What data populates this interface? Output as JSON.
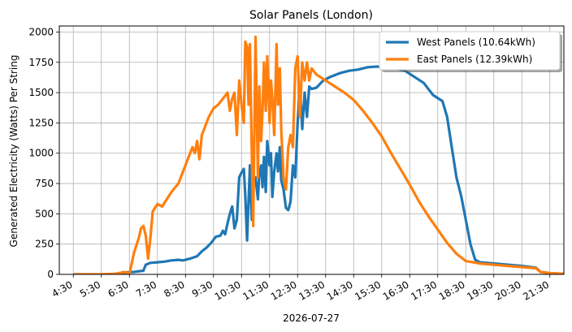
{
  "chart_data": {
    "type": "line",
    "title": "Solar Panels (London)",
    "xlabel": "2026-07-27",
    "ylabel": "Generated Electricity (Watts) Per String",
    "ylim": [
      0,
      2050
    ],
    "yticks": [
      0,
      250,
      500,
      750,
      1000,
      1250,
      1500,
      1750,
      2000
    ],
    "xlim": [
      "4:00",
      "22:00"
    ],
    "xticks": [
      "4:30",
      "5:30",
      "6:30",
      "7:30",
      "8:30",
      "9:30",
      "10:30",
      "11:30",
      "12:30",
      "13:30",
      "14:30",
      "15:30",
      "16:30",
      "17:30",
      "18:30",
      "19:30",
      "20:30",
      "21:30"
    ],
    "grid": true,
    "legend_position": "top-right",
    "series": [
      {
        "name": "West Panels (10.64kWh)",
        "color": "#1f77b4",
        "points": [
          [
            "4:30",
            0
          ],
          [
            "5:30",
            0
          ],
          [
            "6:00",
            5
          ],
          [
            "6:20",
            15
          ],
          [
            "6:40",
            20
          ],
          [
            "7:00",
            30
          ],
          [
            "7:05",
            80
          ],
          [
            "7:15",
            95
          ],
          [
            "7:30",
            100
          ],
          [
            "7:45",
            105
          ],
          [
            "8:00",
            115
          ],
          [
            "8:15",
            120
          ],
          [
            "8:25",
            115
          ],
          [
            "8:40",
            130
          ],
          [
            "8:55",
            150
          ],
          [
            "9:05",
            190
          ],
          [
            "9:15",
            220
          ],
          [
            "9:25",
            260
          ],
          [
            "9:35",
            310
          ],
          [
            "9:45",
            320
          ],
          [
            "9:50",
            360
          ],
          [
            "9:55",
            330
          ],
          [
            "10:00",
            420
          ],
          [
            "10:05",
            500
          ],
          [
            "10:10",
            560
          ],
          [
            "10:15",
            380
          ],
          [
            "10:20",
            450
          ],
          [
            "10:25",
            800
          ],
          [
            "10:30",
            840
          ],
          [
            "10:35",
            870
          ],
          [
            "10:38",
            650
          ],
          [
            "10:42",
            280
          ],
          [
            "10:45",
            600
          ],
          [
            "10:48",
            900
          ],
          [
            "10:52",
            450
          ],
          [
            "10:55",
            750
          ],
          [
            "11:00",
            800
          ],
          [
            "11:05",
            620
          ],
          [
            "11:08",
            830
          ],
          [
            "11:12",
            900
          ],
          [
            "11:15",
            720
          ],
          [
            "11:18",
            970
          ],
          [
            "11:22",
            680
          ],
          [
            "11:25",
            1100
          ],
          [
            "11:30",
            900
          ],
          [
            "11:33",
            1000
          ],
          [
            "11:36",
            640
          ],
          [
            "11:40",
            850
          ],
          [
            "11:45",
            1000
          ],
          [
            "11:48",
            850
          ],
          [
            "11:52",
            1050
          ],
          [
            "11:55",
            780
          ],
          [
            "12:00",
            700
          ],
          [
            "12:05",
            550
          ],
          [
            "12:10",
            530
          ],
          [
            "12:15",
            600
          ],
          [
            "12:20",
            900
          ],
          [
            "12:25",
            800
          ],
          [
            "12:30",
            1250
          ],
          [
            "12:35",
            1550
          ],
          [
            "12:40",
            1200
          ],
          [
            "12:45",
            1500
          ],
          [
            "12:50",
            1300
          ],
          [
            "12:55",
            1550
          ],
          [
            "13:00",
            1530
          ],
          [
            "13:10",
            1540
          ],
          [
            "13:25",
            1600
          ],
          [
            "13:40",
            1630
          ],
          [
            "14:00",
            1660
          ],
          [
            "14:20",
            1680
          ],
          [
            "14:40",
            1690
          ],
          [
            "15:00",
            1710
          ],
          [
            "15:20",
            1715
          ],
          [
            "15:40",
            1710
          ],
          [
            "16:00",
            1700
          ],
          [
            "16:20",
            1680
          ],
          [
            "16:40",
            1630
          ],
          [
            "17:00",
            1580
          ],
          [
            "17:20",
            1480
          ],
          [
            "17:40",
            1430
          ],
          [
            "17:50",
            1300
          ],
          [
            "18:00",
            1050
          ],
          [
            "18:10",
            800
          ],
          [
            "18:20",
            650
          ],
          [
            "18:30",
            450
          ],
          [
            "18:40",
            250
          ],
          [
            "18:50",
            120
          ],
          [
            "19:00",
            100
          ],
          [
            "19:30",
            90
          ],
          [
            "20:00",
            80
          ],
          [
            "20:30",
            70
          ],
          [
            "21:00",
            55
          ],
          [
            "21:10",
            20
          ],
          [
            "21:30",
            10
          ],
          [
            "22:00",
            5
          ],
          [
            "22:30",
            0
          ]
        ]
      },
      {
        "name": "East Panels (12.39kWh)",
        "color": "#ff7f0e",
        "points": [
          [
            "4:30",
            0
          ],
          [
            "5:30",
            0
          ],
          [
            "6:00",
            5
          ],
          [
            "6:20",
            20
          ],
          [
            "6:30",
            0
          ],
          [
            "6:40",
            180
          ],
          [
            "6:50",
            300
          ],
          [
            "6:55",
            380
          ],
          [
            "7:00",
            400
          ],
          [
            "7:05",
            320
          ],
          [
            "7:10",
            130
          ],
          [
            "7:15",
            300
          ],
          [
            "7:20",
            520
          ],
          [
            "7:30",
            580
          ],
          [
            "7:40",
            560
          ],
          [
            "7:50",
            620
          ],
          [
            "8:00",
            680
          ],
          [
            "8:15",
            750
          ],
          [
            "8:25",
            850
          ],
          [
            "8:35",
            950
          ],
          [
            "8:45",
            1050
          ],
          [
            "8:50",
            1000
          ],
          [
            "8:55",
            1100
          ],
          [
            "9:00",
            950
          ],
          [
            "9:05",
            1150
          ],
          [
            "9:10",
            1200
          ],
          [
            "9:20",
            1300
          ],
          [
            "9:30",
            1370
          ],
          [
            "9:40",
            1400
          ],
          [
            "9:50",
            1450
          ],
          [
            "10:00",
            1500
          ],
          [
            "10:05",
            1350
          ],
          [
            "10:10",
            1450
          ],
          [
            "10:15",
            1500
          ],
          [
            "10:20",
            1150
          ],
          [
            "10:25",
            1600
          ],
          [
            "10:30",
            1400
          ],
          [
            "10:35",
            1250
          ],
          [
            "10:38",
            1920
          ],
          [
            "10:42",
            1880
          ],
          [
            "10:45",
            1400
          ],
          [
            "10:48",
            1900
          ],
          [
            "10:52",
            1000
          ],
          [
            "10:55",
            400
          ],
          [
            "11:00",
            1960
          ],
          [
            "11:05",
            800
          ],
          [
            "11:08",
            1550
          ],
          [
            "11:12",
            1100
          ],
          [
            "11:15",
            1350
          ],
          [
            "11:18",
            1750
          ],
          [
            "11:22",
            1350
          ],
          [
            "11:25",
            1800
          ],
          [
            "11:30",
            1250
          ],
          [
            "11:33",
            1600
          ],
          [
            "11:36",
            1450
          ],
          [
            "11:40",
            1150
          ],
          [
            "11:45",
            1900
          ],
          [
            "11:48",
            1400
          ],
          [
            "11:52",
            1700
          ],
          [
            "11:55",
            1200
          ],
          [
            "12:00",
            800
          ],
          [
            "12:05",
            700
          ],
          [
            "12:10",
            1050
          ],
          [
            "12:15",
            1150
          ],
          [
            "12:20",
            1050
          ],
          [
            "12:25",
            1700
          ],
          [
            "12:30",
            1800
          ],
          [
            "12:35",
            1300
          ],
          [
            "12:40",
            1750
          ],
          [
            "12:45",
            1600
          ],
          [
            "12:50",
            1750
          ],
          [
            "12:55",
            1600
          ],
          [
            "13:00",
            1700
          ],
          [
            "13:10",
            1650
          ],
          [
            "13:30",
            1600
          ],
          [
            "13:50",
            1550
          ],
          [
            "14:10",
            1500
          ],
          [
            "14:30",
            1440
          ],
          [
            "14:50",
            1350
          ],
          [
            "15:10",
            1250
          ],
          [
            "15:30",
            1140
          ],
          [
            "15:50",
            1000
          ],
          [
            "16:10",
            870
          ],
          [
            "16:30",
            740
          ],
          [
            "16:50",
            600
          ],
          [
            "17:10",
            480
          ],
          [
            "17:30",
            370
          ],
          [
            "17:50",
            260
          ],
          [
            "18:10",
            170
          ],
          [
            "18:30",
            110
          ],
          [
            "19:00",
            90
          ],
          [
            "19:30",
            80
          ],
          [
            "20:00",
            70
          ],
          [
            "20:30",
            60
          ],
          [
            "21:00",
            50
          ],
          [
            "21:10",
            20
          ],
          [
            "21:30",
            10
          ],
          [
            "22:00",
            5
          ],
          [
            "22:30",
            0
          ]
        ]
      }
    ]
  }
}
